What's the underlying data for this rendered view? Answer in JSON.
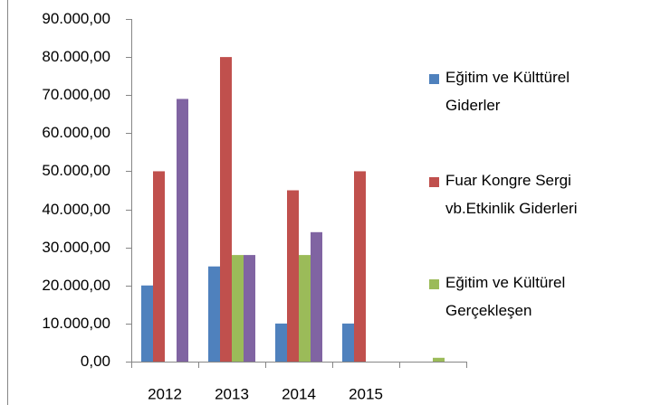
{
  "chart_data": {
    "type": "bar",
    "categories": [
      "2012",
      "2013",
      "2014",
      "2015",
      null
    ],
    "series": [
      {
        "name": "Eğitim ve Külttürel Giderler",
        "color": "#4f81bd",
        "values": [
          20000,
          25000,
          10000,
          10000,
          null
        ]
      },
      {
        "name": "Fuar Kongre Sergi vb.Etkinlik Giderleri",
        "color": "#c0504d",
        "values": [
          50000,
          80000,
          45000,
          50000,
          null
        ]
      },
      {
        "name": "Eğitim ve Kültürel Gerçekleşen",
        "color": "#9bbb59",
        "values": [
          null,
          28000,
          28000,
          null,
          1000
        ]
      },
      {
        "color": "#8064a2",
        "values": [
          69000,
          28000,
          34000,
          null,
          null
        ]
      }
    ],
    "ylim": [
      0,
      90000
    ],
    "yticks": [
      {
        "value": 0,
        "label": "0,00"
      },
      {
        "value": 10000,
        "label": "10.000,00"
      },
      {
        "value": 20000,
        "label": "20.000,00"
      },
      {
        "value": 30000,
        "label": "30.000,00"
      },
      {
        "value": 40000,
        "label": "40.000,00"
      },
      {
        "value": 50000,
        "label": "50.000,00"
      },
      {
        "value": 60000,
        "label": "60.000,00"
      },
      {
        "value": 70000,
        "label": "70.000,00"
      },
      {
        "value": 80000,
        "label": "80.000,00"
      },
      {
        "value": 90000,
        "label": "90.000,00"
      }
    ],
    "legend": "right"
  }
}
